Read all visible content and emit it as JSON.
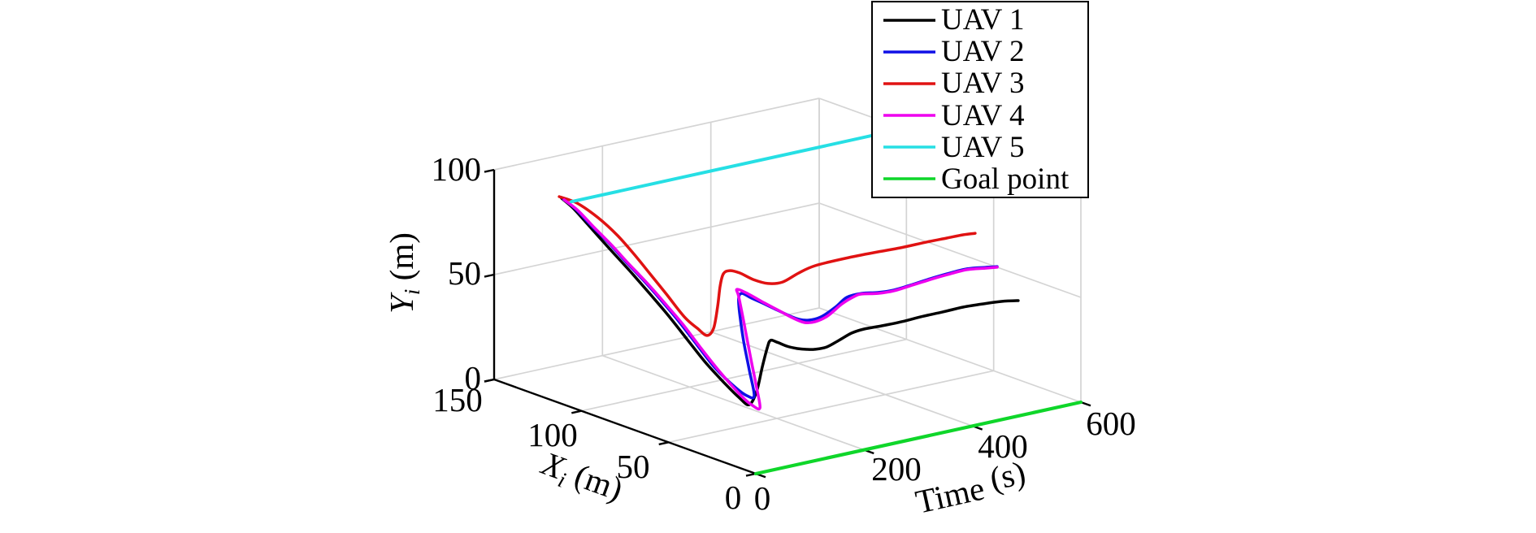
{
  "chart_data": {
    "type": "line",
    "projection": "3d",
    "title": "",
    "grid": true,
    "legend_position": "top-right-outside",
    "axes": {
      "time": {
        "label_letter": "Time",
        "label_sub": "",
        "label_unit": " (s)",
        "range": [
          0,
          600
        ],
        "ticks": [
          0,
          200,
          400,
          600
        ],
        "tick_labels": [
          "0",
          "200",
          "400",
          "600"
        ]
      },
      "xi": {
        "label_letter": "X",
        "label_sub": "i",
        "label_unit": " (m)",
        "range": [
          0,
          150
        ],
        "ticks": [
          0,
          50,
          100,
          150
        ],
        "tick_labels": [
          "0",
          "50",
          "100",
          "150"
        ]
      },
      "yi": {
        "label_letter": "Y",
        "label_sub": "i",
        "label_unit": " (m)",
        "range": [
          0,
          100
        ],
        "ticks": [
          0,
          50,
          100
        ],
        "tick_labels": [
          "0",
          "50",
          "100"
        ]
      }
    },
    "colors": {
      "grid": "#d4d4d4",
      "axis": "#000000"
    },
    "series": [
      {
        "name": "UAV 1",
        "color": "#000000",
        "points": [
          [
            0,
            111.3,
            98.0
          ],
          [
            15,
            109.5,
            93.1
          ],
          [
            30,
            105.7,
            85.6
          ],
          [
            45,
            101.6,
            77.8
          ],
          [
            60,
            97.4,
            70.1
          ],
          [
            75,
            93.2,
            62.4
          ],
          [
            90,
            88.5,
            54.0
          ],
          [
            105,
            82.9,
            44.8
          ],
          [
            120,
            76.9,
            34.5
          ],
          [
            135,
            70.8,
            24.2
          ],
          [
            150,
            64.3,
            15.2
          ],
          [
            162,
            59.6,
            9.0
          ],
          [
            172,
            57.2,
            6.0
          ],
          [
            181,
            55.8,
            12.1
          ],
          [
            189,
            55.0,
            23.6
          ],
          [
            197,
            54.6,
            32.5
          ],
          [
            206,
            55.6,
            35.2
          ],
          [
            216,
            55.0,
            34.0
          ],
          [
            230,
            53.7,
            31.7
          ],
          [
            245,
            52.3,
            30.1
          ],
          [
            258,
            50.8,
            29.4
          ],
          [
            271,
            50.2,
            28.9
          ],
          [
            290,
            49.5,
            29.1
          ],
          [
            309,
            48.4,
            31.5
          ],
          [
            330,
            47.5,
            34.1
          ],
          [
            350,
            46.7,
            35.1
          ],
          [
            378,
            45.2,
            35.5
          ],
          [
            412,
            44.1,
            35.9
          ],
          [
            438,
            41.5,
            37.5
          ],
          [
            478,
            41.3,
            37.6
          ],
          [
            510,
            39.6,
            38.6
          ],
          [
            543,
            38.2,
            38.7
          ],
          [
            572,
            36.9,
            38.6
          ],
          [
            600,
            35.9,
            37.7
          ]
        ]
      },
      {
        "name": "UAV 2",
        "color": "#1010e6",
        "points": [
          [
            0,
            110.4,
            97.9
          ],
          [
            15,
            108.1,
            93.1
          ],
          [
            30,
            103.4,
            85.5
          ],
          [
            45,
            97.8,
            77.8
          ],
          [
            60,
            93.2,
            69.8
          ],
          [
            75,
            88.5,
            62.2
          ],
          [
            90,
            82.9,
            53.4
          ],
          [
            105,
            76.9,
            43.8
          ],
          [
            120,
            70.8,
            33.2
          ],
          [
            135,
            65.2,
            23.2
          ],
          [
            150,
            58.2,
            15.1
          ],
          [
            160,
            54.8,
            11.7
          ],
          [
            168,
            53.1,
            11.7
          ],
          [
            175,
            58.1,
            22.2
          ],
          [
            182,
            63.5,
            33.8
          ],
          [
            190,
            68.3,
            45.5
          ],
          [
            198,
            71.3,
            51.1
          ],
          [
            207,
            72.2,
            52.6
          ],
          [
            217,
            69.7,
            50.5
          ],
          [
            228,
            66.1,
            48.3
          ],
          [
            240,
            62.9,
            45.8
          ],
          [
            252,
            59.6,
            43.4
          ],
          [
            262,
            56.7,
            41.8
          ],
          [
            275,
            55.1,
            41.1
          ],
          [
            291,
            53.1,
            42.3
          ],
          [
            312,
            51.2,
            46.4
          ],
          [
            330,
            50.3,
            50.3
          ],
          [
            350,
            48.1,
            51.7
          ],
          [
            378,
            47.5,
            50.7
          ],
          [
            408,
            47.5,
            50.2
          ],
          [
            443,
            49.1,
            50.0
          ],
          [
            476,
            49.1,
            50.9
          ],
          [
            509,
            48.6,
            51.8
          ],
          [
            547,
            48.8,
            52.0
          ],
          [
            579,
            48.4,
            51.0
          ],
          [
            600,
            48.0,
            50.3
          ]
        ]
      },
      {
        "name": "UAV 3",
        "color": "#e01212",
        "points": [
          [
            0,
            112.7,
            98.4
          ],
          [
            15,
            107.1,
            96.1
          ],
          [
            30,
            99.7,
            90.5
          ],
          [
            45,
            93.2,
            83.1
          ],
          [
            60,
            87.6,
            74.2
          ],
          [
            75,
            83.9,
            65.9
          ],
          [
            90,
            79.2,
            56.8
          ],
          [
            105,
            73.6,
            46.8
          ],
          [
            115,
            69.3,
            42.1
          ],
          [
            125,
            66.8,
            38.8
          ],
          [
            133,
            65.5,
            42.2
          ],
          [
            140,
            65.4,
            51.9
          ],
          [
            146,
            65.8,
            61.5
          ],
          [
            152,
            65.8,
            67.0
          ],
          [
            160,
            64.6,
            68.4
          ],
          [
            172,
            62.7,
            67.2
          ],
          [
            188,
            59.8,
            64.0
          ],
          [
            205,
            56.7,
            62.1
          ],
          [
            233,
            57.0,
            61.1
          ],
          [
            264,
            57.3,
            63.6
          ],
          [
            295,
            57.6,
            65.2
          ],
          [
            352,
            58.1,
            65.3
          ],
          [
            406,
            58.6,
            64.8
          ],
          [
            457,
            59.0,
            64.1
          ],
          [
            507,
            59.6,
            63.8
          ],
          [
            545,
            59.8,
            63.5
          ],
          [
            576,
            60.1,
            63.2
          ],
          [
            600,
            60.6,
            62.4
          ]
        ]
      },
      {
        "name": "UAV 4",
        "color": "#ee00ee",
        "points": [
          [
            0,
            109.9,
            97.7
          ],
          [
            15,
            106.7,
            92.8
          ],
          [
            30,
            102.0,
            85.2
          ],
          [
            45,
            96.4,
            77.4
          ],
          [
            60,
            91.8,
            69.5
          ],
          [
            75,
            86.6,
            61.6
          ],
          [
            90,
            81.0,
            52.8
          ],
          [
            105,
            74.5,
            43.0
          ],
          [
            120,
            68.5,
            32.3
          ],
          [
            135,
            62.0,
            21.8
          ],
          [
            150,
            55.0,
            12.2
          ],
          [
            160,
            51.6,
            8.0
          ],
          [
            168,
            49.8,
            6.9
          ],
          [
            176,
            54.2,
            14.8
          ],
          [
            183,
            60.1,
            28.2
          ],
          [
            191,
            66.3,
            42.1
          ],
          [
            199,
            71.6,
            51.7
          ],
          [
            207,
            75.0,
            53.7
          ],
          [
            217,
            71.6,
            51.9
          ],
          [
            230,
            66.3,
            48.4
          ],
          [
            243,
            62.4,
            45.4
          ],
          [
            256,
            58.6,
            42.3
          ],
          [
            268,
            55.3,
            40.3
          ],
          [
            281,
            53.2,
            40.6
          ],
          [
            296,
            50.9,
            43.1
          ],
          [
            313,
            47.8,
            48.9
          ],
          [
            331,
            46.4,
            51.8
          ],
          [
            350,
            48.1,
            51.4
          ],
          [
            378,
            47.5,
            50.3
          ],
          [
            408,
            47.5,
            49.8
          ],
          [
            443,
            49.1,
            49.7
          ],
          [
            476,
            49.1,
            50.5
          ],
          [
            509,
            48.6,
            51.4
          ],
          [
            547,
            48.8,
            51.6
          ],
          [
            579,
            48.4,
            50.6
          ],
          [
            600,
            48.0,
            50.0
          ]
        ]
      },
      {
        "name": "UAV 5",
        "color": "#26dfe4",
        "points": [
          [
            0,
            105.7,
            98.1
          ],
          [
            600,
            105.7,
            98.1
          ]
        ]
      },
      {
        "name": "Goal point",
        "color": "#0fd62a",
        "points": [
          [
            0,
            0,
            0
          ],
          [
            600,
            0,
            0
          ]
        ]
      }
    ]
  }
}
